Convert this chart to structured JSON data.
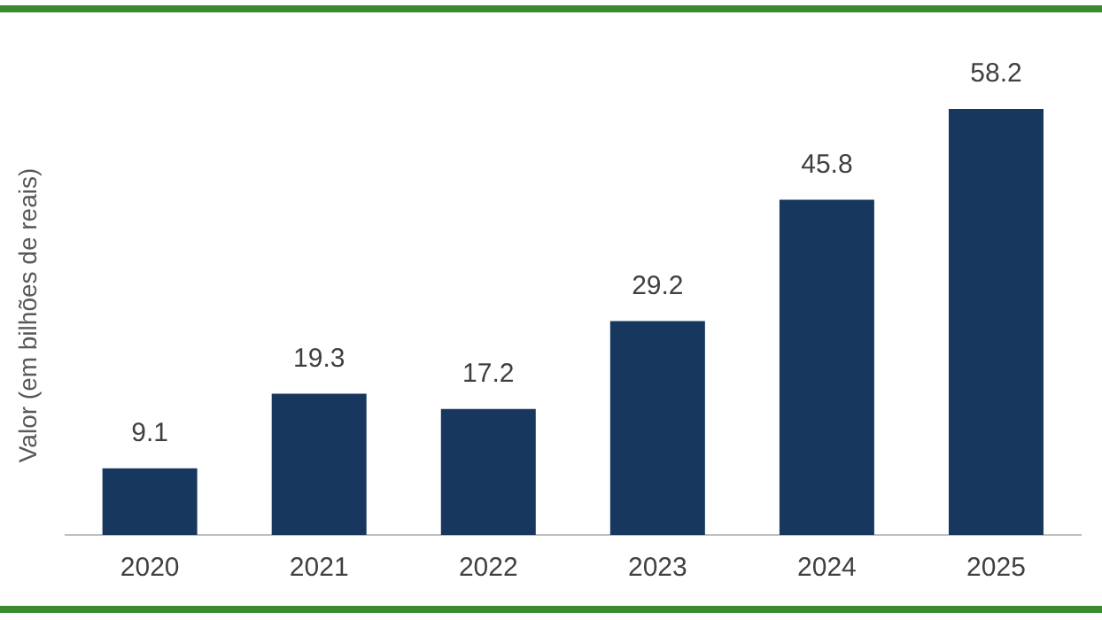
{
  "chart_data": {
    "type": "bar",
    "ylabel": "Valor (em bilhões de reais)",
    "categories": [
      "2020",
      "2021",
      "2022",
      "2023",
      "2024",
      "2025"
    ],
    "values": [
      9.1,
      19.3,
      17.2,
      29.2,
      45.8,
      58.2
    ],
    "color": "#17375e",
    "data_labels": true,
    "grid": false,
    "legend": false,
    "tick_labels": "x"
  }
}
